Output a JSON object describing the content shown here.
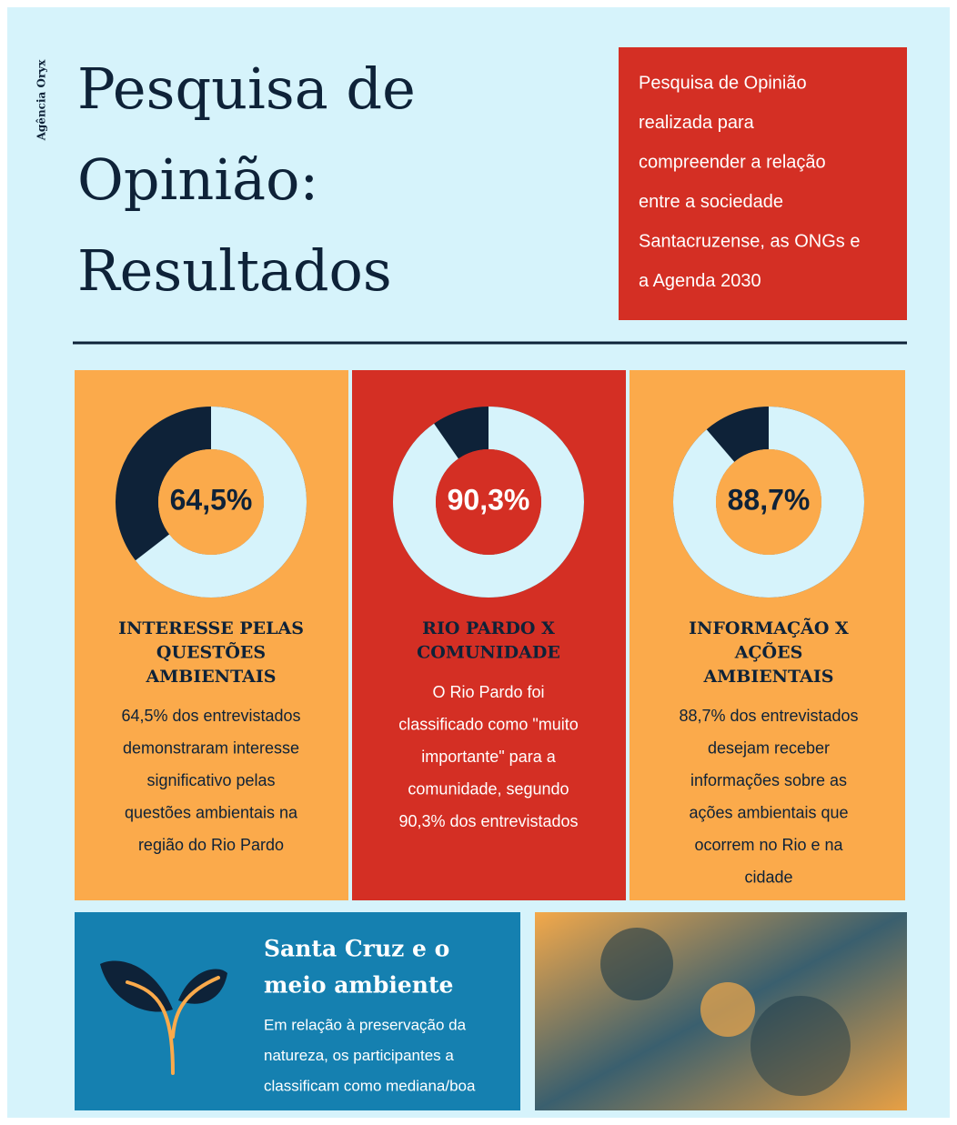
{
  "header": {
    "brand": "Agência Oryx",
    "title_lines": [
      "Pesquisa de",
      "Opinião:",
      "Resultados"
    ],
    "intro_lines": [
      "Pesquisa de Opinião",
      "realizada para",
      "compreender a relação",
      "entre a sociedade",
      "Santacruzense, as ONGs e",
      "a Agenda 2030"
    ]
  },
  "cards": [
    {
      "value": 64.5,
      "value_label": "64,5%",
      "title_lines": [
        "INTERESSE PELAS",
        "QUESTÕES",
        "AMBIENTAIS"
      ],
      "text_lines": [
        "64,5% dos entrevistados",
        "demonstraram  interesse",
        "significativo pelas",
        "questões ambientais na",
        "região do Rio Pardo"
      ]
    },
    {
      "value": 90.3,
      "value_label": "90,3%",
      "title_lines": [
        "RIO PARDO X",
        "COMUNIDADE"
      ],
      "text_lines": [
        "O Rio Pardo foi",
        "classificado como \"muito",
        "importante\" para a",
        "comunidade, segundo",
        "90,3% dos entrevistados"
      ]
    },
    {
      "value": 88.7,
      "value_label": "88,7%",
      "title_lines": [
        "INFORMAÇÃO X",
        "AÇÕES",
        "AMBIENTAIS"
      ],
      "text_lines": [
        "88,7% dos entrevistados",
        "desejam receber",
        "informações sobre as",
        "ações ambientais que",
        "ocorrem no Rio e na",
        "cidade"
      ]
    }
  ],
  "footer": {
    "title_lines": [
      "Santa Cruz e o",
      "meio ambiente"
    ],
    "text_lines": [
      "Em relação à preservação da",
      "natureza, os participantes a",
      "classificam como mediana/boa"
    ]
  }
}
